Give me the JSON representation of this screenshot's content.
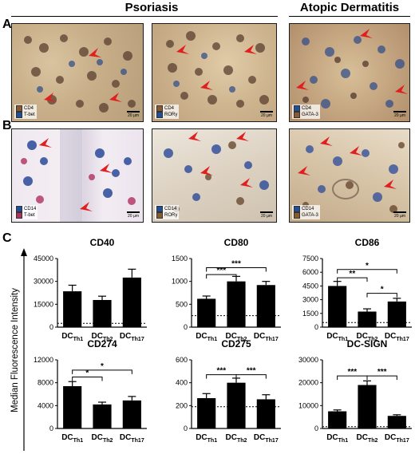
{
  "headers": {
    "psoriasis": "Psoriasis",
    "atopic": "Atopic Dermatitis"
  },
  "panel_letters": {
    "a": "A",
    "b": "B",
    "c": "C"
  },
  "micrographs": {
    "a1": {
      "legend": [
        "CD4",
        "T-bet"
      ],
      "scale": "20 µm",
      "swatches": [
        "#8b5a2b",
        "#1f4e9a"
      ]
    },
    "a2": {
      "legend": [
        "CD4",
        "RORγ"
      ],
      "scale": "20 µm",
      "swatches": [
        "#8b5a2b",
        "#1f4e9a"
      ]
    },
    "a3": {
      "legend": [
        "CD4",
        "GATA-3"
      ],
      "scale": "20 µm",
      "swatches": [
        "#1f4e9a",
        "#8b5a2b"
      ]
    },
    "b1": {
      "legend": [
        "CD14",
        "T-bet"
      ],
      "scale": "20 µm",
      "swatches": [
        "#1f4e9a",
        "#b0305a"
      ]
    },
    "b2": {
      "legend": [
        "CD14",
        "RORγ"
      ],
      "scale": "20 µm",
      "swatches": [
        "#1f4e9a",
        "#8b5a2b"
      ]
    },
    "b3": {
      "legend": [
        "CD14",
        "GATA-3"
      ],
      "scale": "20 µm",
      "swatches": [
        "#1f4e9a",
        "#8b5a2b"
      ]
    }
  },
  "y_axis_title": "Median Fluorescence Intensity",
  "x_label_main": "DC",
  "chart_data": [
    {
      "type": "bar",
      "title": "CD40",
      "categories": [
        "Th1",
        "Th2",
        "Th17"
      ],
      "values": [
        23500,
        17800,
        32500
      ],
      "errors": [
        4000,
        2500,
        5500
      ],
      "ylim": [
        0,
        45000
      ],
      "yticks": [
        "0",
        "15000",
        "30000",
        "45000"
      ],
      "tick_values": [
        0,
        15000,
        30000,
        45000
      ],
      "baseline": 2500,
      "brackets": []
    },
    {
      "type": "bar",
      "title": "CD80",
      "categories": [
        "Th1",
        "Th2",
        "Th17"
      ],
      "values": [
        620,
        1000,
        920
      ],
      "errors": [
        60,
        110,
        80
      ],
      "ylim": [
        0,
        1500
      ],
      "yticks": [
        "0",
        "500",
        "1000",
        "1500"
      ],
      "tick_values": [
        0,
        500,
        1000,
        1500
      ],
      "baseline": 250,
      "brackets": [
        {
          "from": 0,
          "to": 1,
          "level": 1150,
          "label": "***"
        },
        {
          "from": 0,
          "to": 2,
          "level": 1300,
          "label": "***"
        }
      ]
    },
    {
      "type": "bar",
      "title": "CD86",
      "categories": [
        "Th1",
        "Th2",
        "Th17"
      ],
      "values": [
        4500,
        1700,
        2800
      ],
      "errors": [
        500,
        300,
        350
      ],
      "ylim": [
        0,
        7500
      ],
      "yticks": [
        "0",
        "1500",
        "3000",
        "4500",
        "6000",
        "7500"
      ],
      "tick_values": [
        0,
        1500,
        3000,
        4500,
        6000,
        7500
      ],
      "baseline": 500,
      "brackets": [
        {
          "from": 0,
          "to": 1,
          "level": 5400,
          "label": "**"
        },
        {
          "from": 0,
          "to": 2,
          "level": 6300,
          "label": "*"
        },
        {
          "from": 1,
          "to": 2,
          "level": 3700,
          "label": "*"
        }
      ]
    },
    {
      "type": "bar",
      "title": "CD274",
      "categories": [
        "Th1",
        "Th2",
        "Th17"
      ],
      "values": [
        7400,
        4200,
        4900
      ],
      "errors": [
        800,
        400,
        700
      ],
      "ylim": [
        0,
        12000
      ],
      "yticks": [
        "0",
        "4000",
        "8000",
        "12000"
      ],
      "tick_values": [
        0,
        4000,
        8000,
        12000
      ],
      "baseline": 0,
      "brackets": [
        {
          "from": 0,
          "to": 1,
          "level": 9000,
          "label": "*"
        },
        {
          "from": 0,
          "to": 2,
          "level": 10200,
          "label": "*"
        }
      ]
    },
    {
      "type": "bar",
      "title": "CD275",
      "categories": [
        "Th1",
        "Th2",
        "Th17"
      ],
      "values": [
        265,
        400,
        255
      ],
      "errors": [
        40,
        40,
        40
      ],
      "ylim": [
        0,
        600
      ],
      "yticks": [
        "0",
        "200",
        "400",
        "600"
      ],
      "tick_values": [
        0,
        200,
        400,
        600
      ],
      "baseline": 190,
      "brackets": [
        {
          "from": 0,
          "to": 1,
          "level": 470,
          "label": "***"
        },
        {
          "from": 1,
          "to": 2,
          "level": 470,
          "label": "***"
        }
      ]
    },
    {
      "type": "bar",
      "title": "DC-SIGN",
      "categories": [
        "Th1",
        "Th2",
        "Th17"
      ],
      "values": [
        7500,
        19000,
        5500
      ],
      "errors": [
        600,
        1800,
        500
      ],
      "ylim": [
        0,
        30000
      ],
      "yticks": [
        "0",
        "10000",
        "20000",
        "30000"
      ],
      "tick_values": [
        0,
        10000,
        20000,
        30000
      ],
      "baseline": 800,
      "brackets": [
        {
          "from": 0,
          "to": 1,
          "level": 23000,
          "label": "***"
        },
        {
          "from": 1,
          "to": 2,
          "level": 23000,
          "label": "***"
        }
      ]
    }
  ]
}
